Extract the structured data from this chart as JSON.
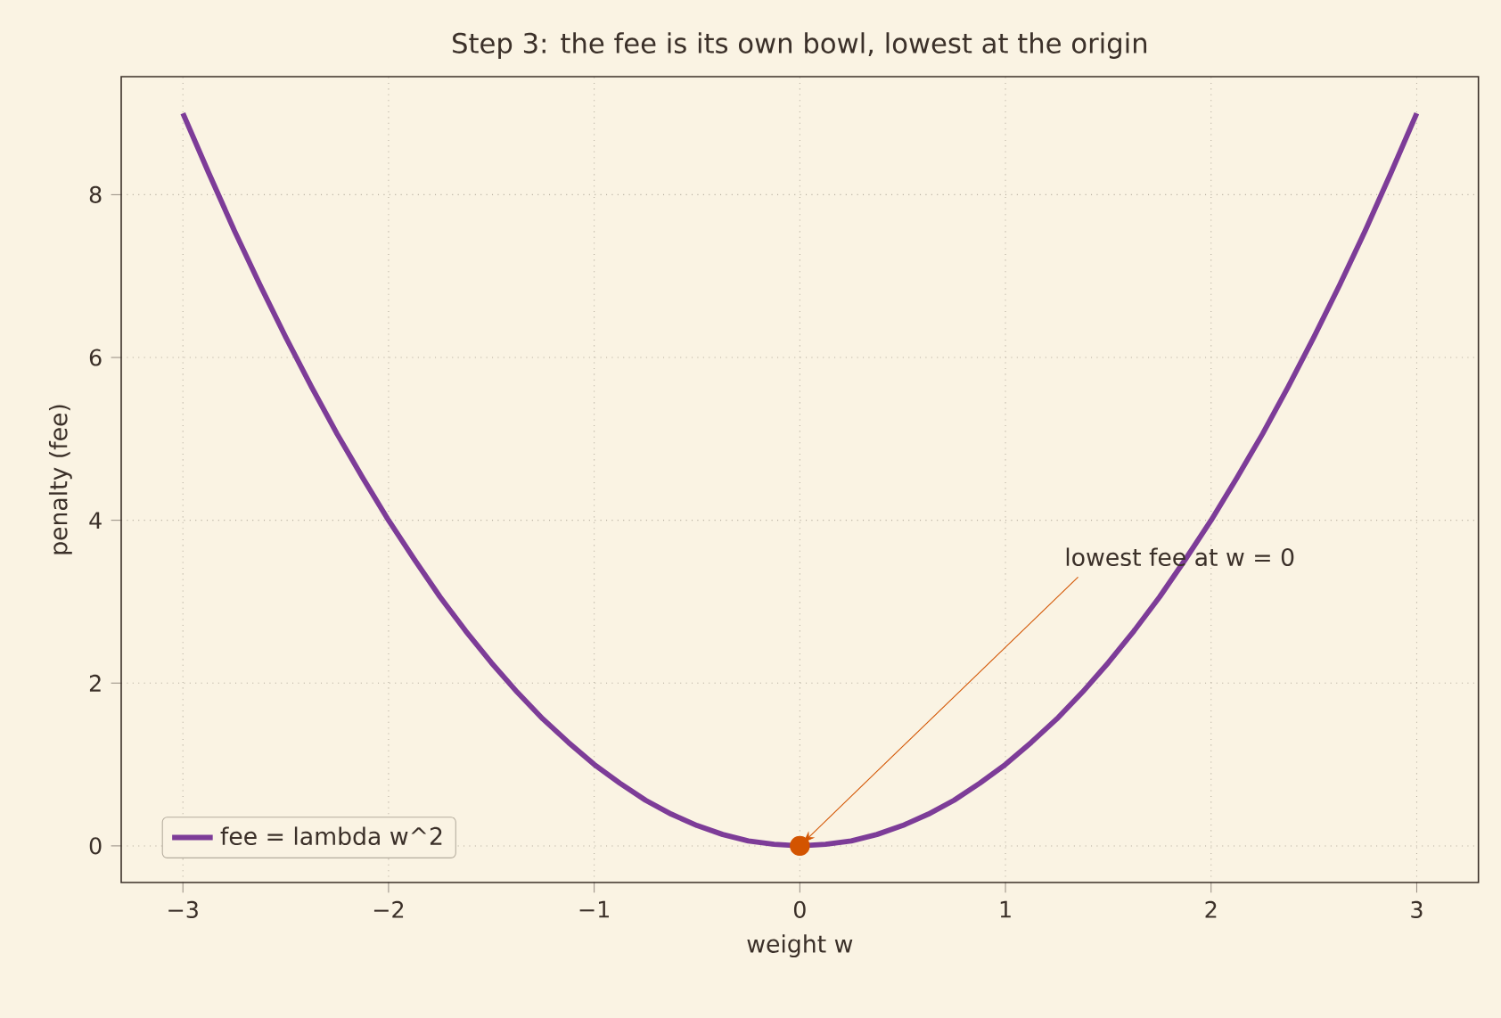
{
  "chart_data": {
    "type": "line",
    "title": "Step 3: the fee is its own bowl, lowest at the origin",
    "xlabel": "weight w",
    "ylabel": "penalty (fee)",
    "series": [
      {
        "name": "fee = lambda w^2",
        "color": "#7d3c98",
        "marker": "none",
        "x": [
          -3,
          -2.875,
          -2.75,
          -2.625,
          -2.5,
          -2.375,
          -2.25,
          -2.125,
          -2,
          -1.875,
          -1.75,
          -1.625,
          -1.5,
          -1.375,
          -1.25,
          -1.125,
          -1,
          -0.875,
          -0.75,
          -0.625,
          -0.5,
          -0.375,
          -0.25,
          -0.125,
          0,
          0.125,
          0.25,
          0.375,
          0.5,
          0.625,
          0.75,
          0.875,
          1,
          1.125,
          1.25,
          1.375,
          1.5,
          1.625,
          1.75,
          1.875,
          2,
          2.125,
          2.25,
          2.375,
          2.5,
          2.625,
          2.75,
          2.875,
          3
        ],
        "values": [
          9,
          8.27,
          7.56,
          6.89,
          6.25,
          5.64,
          5.06,
          4.52,
          4,
          3.52,
          3.06,
          2.64,
          2.25,
          1.89,
          1.56,
          1.27,
          1,
          0.77,
          0.56,
          0.39,
          0.25,
          0.14,
          0.06,
          0.02,
          0,
          0.02,
          0.06,
          0.14,
          0.25,
          0.39,
          0.56,
          0.77,
          1,
          1.27,
          1.56,
          1.89,
          2.25,
          2.64,
          3.06,
          3.52,
          4,
          4.52,
          5.06,
          5.64,
          6.25,
          6.89,
          7.56,
          8.27,
          9
        ]
      },
      {
        "type": "scatter",
        "color": "#d35400",
        "marker": "circle",
        "x": [
          0
        ],
        "values": [
          0
        ]
      }
    ],
    "annotations": [
      {
        "text": "lowest fee at w = 0",
        "x": 0,
        "y": 0
      }
    ],
    "xlim": [
      -3.3,
      3.3
    ],
    "ylim": [
      -0.45,
      9.45
    ],
    "xticks": [
      {
        "value": -3,
        "label": "−3"
      },
      {
        "value": -2,
        "label": "−2"
      },
      {
        "value": -1,
        "label": "−1"
      },
      0,
      1,
      2,
      3
    ],
    "yticks": [
      0,
      2,
      4,
      6,
      8
    ],
    "grid": true,
    "legend": "bottom left",
    "line_style": "solid"
  }
}
